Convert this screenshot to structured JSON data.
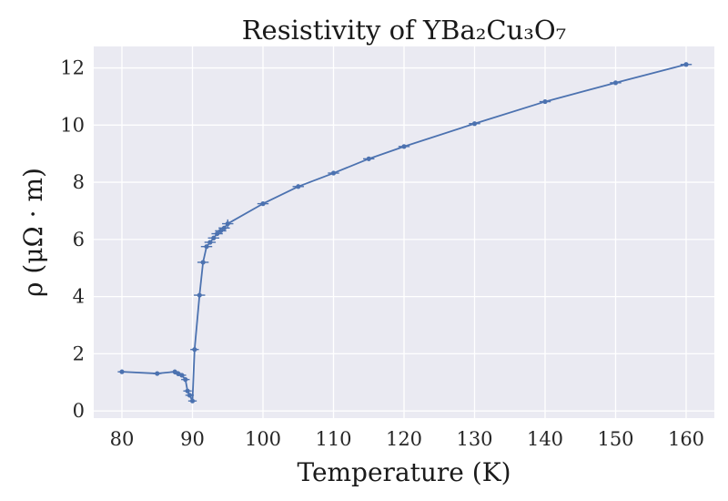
{
  "chart_data": {
    "type": "line",
    "title": "Resistivity of YBa₂Cu₃O₇",
    "xlabel": "Temperature (K)",
    "ylabel": "ρ (μΩ · m)",
    "xlim": [
      76,
      164
    ],
    "ylim": [
      -0.25,
      12.75
    ],
    "x_ticks": [
      80,
      90,
      100,
      110,
      120,
      130,
      140,
      150,
      160
    ],
    "y_ticks": [
      0,
      2,
      4,
      6,
      8,
      10,
      12
    ],
    "grid": true,
    "series": [
      {
        "color": "#4c72b0",
        "x": [
          80.0,
          85.0,
          87.5,
          88.0,
          88.5,
          89.0,
          89.3,
          89.6,
          90.0,
          90.3,
          91.0,
          91.5,
          92.0,
          92.5,
          93.0,
          93.5,
          94.0,
          94.5,
          95.0,
          100.0,
          105.0,
          110.0,
          115.0,
          120.0,
          130.0,
          140.0,
          150.0,
          160.0
        ],
        "y": [
          1.37,
          1.31,
          1.37,
          1.3,
          1.25,
          1.1,
          0.7,
          0.55,
          0.35,
          2.15,
          4.05,
          5.2,
          5.75,
          5.9,
          6.05,
          6.2,
          6.3,
          6.4,
          6.55,
          7.25,
          7.85,
          8.32,
          8.82,
          9.25,
          10.05,
          10.82,
          11.48,
          12.12
        ],
        "xerr": [
          0.6,
          0.6,
          0.6,
          0.6,
          0.6,
          0.6,
          0.6,
          0.6,
          0.6,
          0.6,
          0.8,
          0.8,
          0.8,
          0.8,
          0.8,
          0.8,
          0.8,
          0.8,
          0.8,
          0.8,
          0.8,
          0.8,
          0.8,
          0.8,
          0.8,
          0.8,
          0.8,
          0.8
        ],
        "yerr": [
          0.0,
          0.0,
          0.0,
          0.0,
          0.0,
          0.0,
          0.0,
          0.0,
          0.0,
          0.0,
          0.0,
          0.0,
          0.0,
          0.0,
          0.0,
          0.0,
          0.0,
          0.0,
          0.15,
          0.0,
          0.0,
          0.0,
          0.0,
          0.0,
          0.0,
          0.0,
          0.0,
          0.0
        ]
      }
    ]
  }
}
